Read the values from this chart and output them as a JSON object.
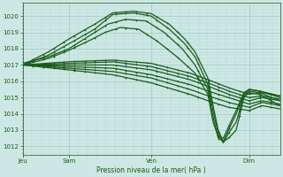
{
  "xlabel": "Pression niveau de la mer( hPa )",
  "xtick_labels": [
    "Jeu",
    "Sam",
    "Ven",
    "Dim"
  ],
  "xtick_positions": [
    0.0,
    0.18,
    0.5,
    0.88
  ],
  "ylim": [
    1011.5,
    1020.8
  ],
  "yticks": [
    1012,
    1013,
    1014,
    1015,
    1016,
    1017,
    1018,
    1019,
    1020
  ],
  "bg_color": "#cde8e4",
  "grid_major_color": "#a0c8c4",
  "grid_minor_color": "#b8d8d4",
  "line_color": "#1a5c1a",
  "fig_bg": "#cde8e4"
}
